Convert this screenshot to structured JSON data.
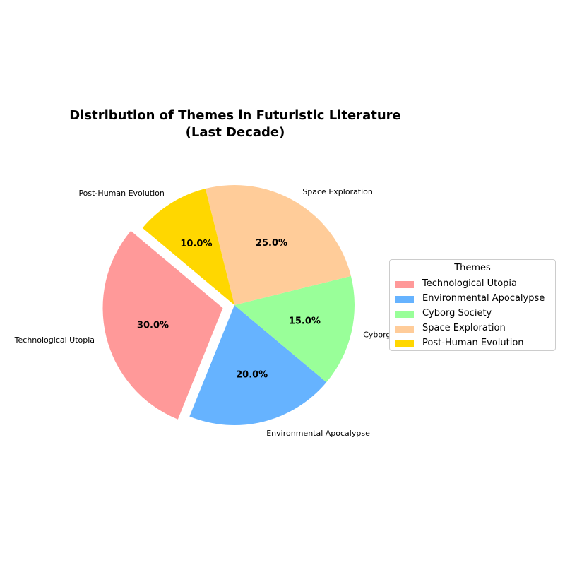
{
  "chart_data": {
    "type": "pie",
    "title_lines": [
      "Distribution of Themes in Futuristic Literature",
      "(Last Decade)"
    ],
    "categories": [
      "Technological Utopia",
      "Environmental Apocalypse",
      "Cyborg Society",
      "Space Exploration",
      "Post-Human Evolution"
    ],
    "values": [
      30.0,
      20.0,
      15.0,
      25.0,
      10.0
    ],
    "percent_labels": [
      "30.0%",
      "20.0%",
      "15.0%",
      "25.0%",
      "10.0%"
    ],
    "colors": [
      "#FF9999",
      "#66B3FF",
      "#99FF99",
      "#FFCC99",
      "#FFD700"
    ],
    "exploded": [
      "Technological Utopia"
    ],
    "legend": {
      "title": "Themes",
      "placement": "right",
      "entries": [
        "Technological Utopia",
        "Environmental Apocalypse",
        "Cyborg Society",
        "Space Exploration",
        "Post-Human Evolution"
      ]
    }
  }
}
